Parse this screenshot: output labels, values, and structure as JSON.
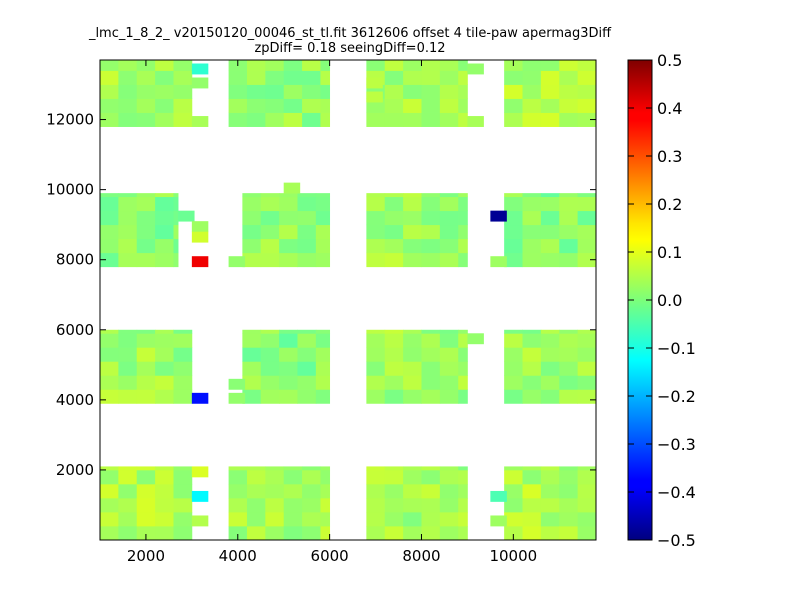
{
  "chart_data": {
    "type": "heatmap",
    "title": "_lmc_1_8_2_ v20150120_00046_st_tl.fit 3612606 offset 4 tile-paw apermag3Diff",
    "subtitle": "zpDiff= 0.18 seeingDiff=0.12",
    "xlabel": "",
    "ylabel": "",
    "xlim": [
      1000,
      11800
    ],
    "ylim": [
      0,
      13700
    ],
    "x_ticks": [
      2000,
      4000,
      6000,
      8000,
      10000
    ],
    "y_ticks": [
      2000,
      4000,
      6000,
      8000,
      10000,
      12000
    ],
    "grid": false,
    "colorbar": {
      "colormap": "jet",
      "range": [
        -0.5,
        0.5
      ],
      "ticks": [
        "0.5",
        "0.4",
        "0.3",
        "0.2",
        "0.1",
        "0.0",
        "−0.1",
        "−0.2",
        "−0.3",
        "−0.4",
        "−0.5"
      ]
    },
    "cell_size": 400,
    "detector_blocks": [
      {
        "x": [
          1000,
          3000
        ],
        "y": [
          11800,
          13700
        ],
        "base": 0.04
      },
      {
        "x": [
          3800,
          6000
        ],
        "y": [
          11800,
          13700
        ],
        "base": 0.02
      },
      {
        "x": [
          6800,
          9000
        ],
        "y": [
          11800,
          13700
        ],
        "base": 0.04
      },
      {
        "x": [
          9800,
          11800
        ],
        "y": [
          11800,
          13700
        ],
        "base": 0.05
      },
      {
        "x": [
          1000,
          2700
        ],
        "y": [
          7800,
          9900
        ],
        "base": 0.01
      },
      {
        "x": [
          4100,
          6000
        ],
        "y": [
          7800,
          9900
        ],
        "base": 0.02
      },
      {
        "x": [
          6800,
          9000
        ],
        "y": [
          7800,
          9900
        ],
        "base": 0.03
      },
      {
        "x": [
          9800,
          11800
        ],
        "y": [
          7800,
          9900
        ],
        "base": 0.01
      },
      {
        "x": [
          1000,
          3000
        ],
        "y": [
          3900,
          6000
        ],
        "base": 0.03
      },
      {
        "x": [
          4100,
          6000
        ],
        "y": [
          3900,
          6000
        ],
        "base": 0.01
      },
      {
        "x": [
          6800,
          9000
        ],
        "y": [
          3900,
          6000
        ],
        "base": 0.03
      },
      {
        "x": [
          9800,
          11800
        ],
        "y": [
          3900,
          6000
        ],
        "base": 0.03
      },
      {
        "x": [
          1000,
          3000
        ],
        "y": [
          0,
          2100
        ],
        "base": 0.05
      },
      {
        "x": [
          3800,
          6000
        ],
        "y": [
          0,
          2100
        ],
        "base": 0.04
      },
      {
        "x": [
          6800,
          9000
        ],
        "y": [
          0,
          2100
        ],
        "base": 0.04
      },
      {
        "x": [
          9800,
          11800
        ],
        "y": [
          0,
          2100
        ],
        "base": 0.05
      }
    ],
    "extra_cells": [
      {
        "x": 3000,
        "y": 13300,
        "value": -0.08
      },
      {
        "x": 3000,
        "y": 12900,
        "value": 0.02
      },
      {
        "x": 3000,
        "y": 11800,
        "value": 0.04
      },
      {
        "x": 6800,
        "y": 12900,
        "value": 0.06
      },
      {
        "x": 6800,
        "y": 12500,
        "value": 0.06
      },
      {
        "x": 9000,
        "y": 13300,
        "value": 0.02
      },
      {
        "x": 9000,
        "y": 11800,
        "value": 0.04
      },
      {
        "x": 2700,
        "y": 9100,
        "value": -0.02
      },
      {
        "x": 3000,
        "y": 8800,
        "value": 0.03
      },
      {
        "x": 3000,
        "y": 8500,
        "value": 0.08
      },
      {
        "x": 3000,
        "y": 7800,
        "value": 0.39
      },
      {
        "x": 3800,
        "y": 7800,
        "value": 0.02
      },
      {
        "x": 5000,
        "y": 9900,
        "value": 0.04
      },
      {
        "x": 9500,
        "y": 9100,
        "value": -0.48
      },
      {
        "x": 9500,
        "y": 7800,
        "value": 0.03
      },
      {
        "x": 3000,
        "y": 3900,
        "value": -0.36
      },
      {
        "x": 3800,
        "y": 3900,
        "value": 0.02
      },
      {
        "x": 3800,
        "y": 4300,
        "value": 0.01
      },
      {
        "x": 9000,
        "y": 5600,
        "value": 0.02
      },
      {
        "x": 3000,
        "y": 1800,
        "value": 0.09
      },
      {
        "x": 3000,
        "y": 1100,
        "value": -0.13
      },
      {
        "x": 3000,
        "y": 400,
        "value": 0.05
      },
      {
        "x": 9500,
        "y": 1100,
        "value": -0.05
      },
      {
        "x": 9500,
        "y": 400,
        "value": 0.03
      }
    ],
    "notch_cells": [
      {
        "x": 5700,
        "y": 11800
      },
      {
        "x": 9000,
        "y": 5900
      },
      {
        "x": 1000,
        "y": 9500
      }
    ]
  }
}
